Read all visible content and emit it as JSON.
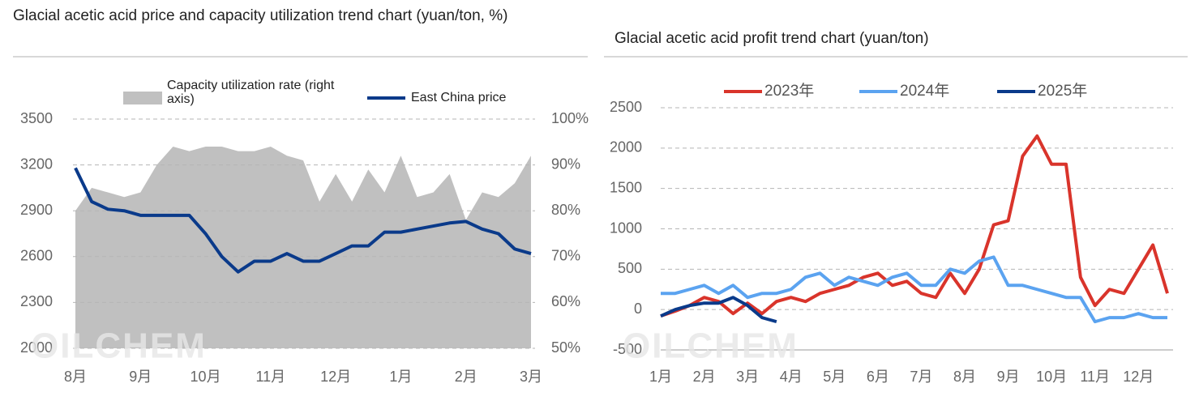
{
  "chart_data": [
    {
      "type": "combo",
      "title": "Glacial acetic acid price and capacity utilization trend chart (yuan/ton, %)",
      "watermark": "OILCHEM",
      "categories": [
        "8月",
        null,
        null,
        null,
        "9月",
        null,
        null,
        null,
        "10月",
        null,
        null,
        null,
        "11月",
        null,
        null,
        null,
        "12月",
        null,
        null,
        null,
        "1月",
        null,
        null,
        null,
        "2月",
        null,
        null,
        null,
        "3月"
      ],
      "series": [
        {
          "name": "Capacity utilization rate (right axis)",
          "kind": "area",
          "axis": "y2",
          "color": "#c0c0c0",
          "values": [
            80,
            85,
            84,
            83,
            84,
            90,
            94,
            93,
            94,
            94,
            93,
            93,
            94,
            92,
            91,
            82,
            88,
            82,
            89,
            84,
            92,
            83,
            84,
            88,
            78,
            84,
            83,
            86,
            92
          ]
        },
        {
          "name": "East China price",
          "kind": "line",
          "color": "#0a3a8a",
          "values": [
            3180,
            2960,
            2910,
            2900,
            2870,
            2870,
            2870,
            2870,
            2750,
            2600,
            2500,
            2570,
            2570,
            2620,
            2570,
            2570,
            2620,
            2670,
            2670,
            2760,
            2760,
            2780,
            2800,
            2820,
            2830,
            2780,
            2750,
            2650,
            2620
          ]
        }
      ],
      "ylim": [
        2000,
        3500
      ],
      "yticks": [
        2000,
        2300,
        2600,
        2900,
        3200,
        3500
      ],
      "y2lim": [
        50,
        100
      ],
      "y2ticks": [
        {
          "value": 50,
          "label": "50%"
        },
        {
          "value": 60,
          "label": "60%"
        },
        {
          "value": 70,
          "label": "70%"
        },
        {
          "value": 80,
          "label": "80%"
        },
        {
          "value": 90,
          "label": "90%"
        },
        {
          "value": 100,
          "label": "100%"
        }
      ],
      "grid": true
    },
    {
      "type": "line",
      "title": "Glacial acetic acid profit trend chart (yuan/ton)",
      "watermark": "OILCHEM",
      "categories": [
        "1月",
        null,
        null,
        "2月",
        null,
        null,
        "3月",
        null,
        null,
        "4月",
        null,
        null,
        "5月",
        null,
        null,
        "6月",
        null,
        null,
        "7月",
        null,
        null,
        "8月",
        null,
        null,
        "9月",
        null,
        null,
        "10月",
        null,
        null,
        "11月",
        null,
        null,
        "12月",
        null,
        null
      ],
      "series": [
        {
          "name": "2023年",
          "color": "#d9342b",
          "values": [
            -80,
            -20,
            50,
            150,
            100,
            -50,
            80,
            -50,
            100,
            150,
            100,
            200,
            250,
            300,
            400,
            450,
            300,
            350,
            200,
            150,
            450,
            200,
            500,
            1050,
            1100,
            1900,
            2150,
            1800,
            1800,
            400,
            50,
            250,
            200,
            500,
            800,
            200
          ]
        },
        {
          "name": "2024年",
          "color": "#5ba3f0",
          "values": [
            200,
            200,
            250,
            300,
            200,
            300,
            150,
            200,
            200,
            250,
            400,
            450,
            300,
            400,
            350,
            300,
            400,
            450,
            300,
            300,
            500,
            450,
            600,
            650,
            300,
            300,
            250,
            200,
            150,
            150,
            -150,
            -100,
            -100,
            -50,
            -100,
            -100
          ]
        },
        {
          "name": "2025年",
          "color": "#0a3a8a",
          "values": [
            -80,
            0,
            50,
            80,
            80,
            150,
            50,
            -100,
            -150,
            null,
            null,
            null,
            null,
            null,
            null,
            null,
            null,
            null,
            null,
            null,
            null,
            null,
            null,
            null,
            null,
            null,
            null,
            null,
            null,
            null,
            null,
            null,
            null,
            null,
            null,
            null
          ]
        }
      ],
      "ylim": [
        -500,
        2500
      ],
      "yticks": [
        -500,
        0,
        500,
        1000,
        1500,
        2000,
        2500
      ],
      "grid": true
    }
  ]
}
